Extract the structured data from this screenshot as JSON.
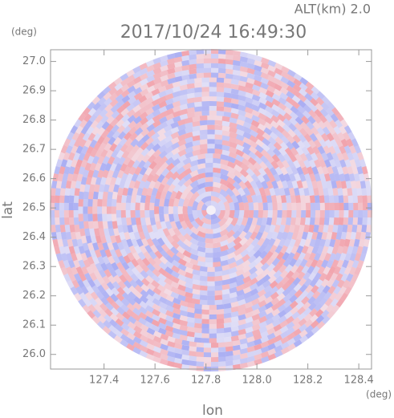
{
  "chart_data": {
    "type": "radar-field",
    "title": "2017/10/24 16:49:30",
    "annotation": "ALT(km) 2.0",
    "x_label": "lon",
    "y_label": "lat",
    "x_unit": "(deg)",
    "y_unit": "(deg)",
    "xlim": [
      127.19,
      128.45
    ],
    "ylim": [
      25.95,
      27.04
    ],
    "xticks": [
      127.4,
      127.6,
      127.8,
      {
        "value": 128,
        "label": "128.0"
      },
      128.2,
      128.4
    ],
    "yticks": [
      {
        "value": 26,
        "label": "26.0"
      },
      26.1,
      26.2,
      26.3,
      26.4,
      26.5,
      26.6,
      26.7,
      26.8,
      26.9,
      {
        "value": 27,
        "label": "27.0"
      }
    ]
  }
}
